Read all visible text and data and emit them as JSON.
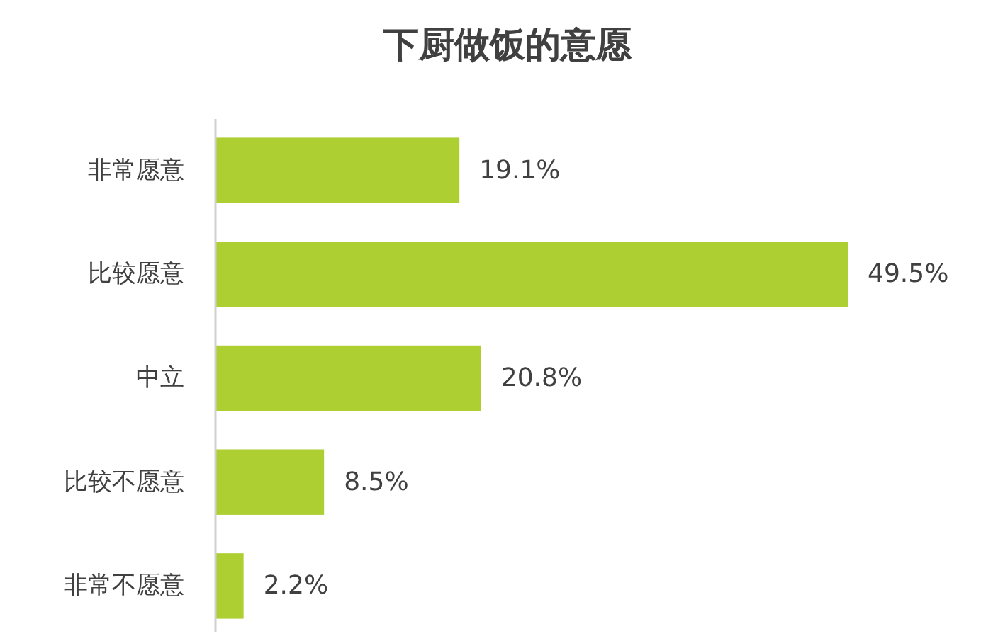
{
  "chart_data": {
    "type": "bar",
    "orientation": "horizontal",
    "title": "下厨做饭的意愿",
    "categories": [
      "非常愿意",
      "比较愿意",
      "中立",
      "比较不愿意",
      "非常不愿意"
    ],
    "values": [
      19.1,
      49.5,
      20.8,
      8.5,
      2.2
    ],
    "value_labels": [
      "19.1%",
      "49.5%",
      "20.8%",
      "8.5%",
      "2.2%"
    ],
    "color": "#aecf32"
  }
}
